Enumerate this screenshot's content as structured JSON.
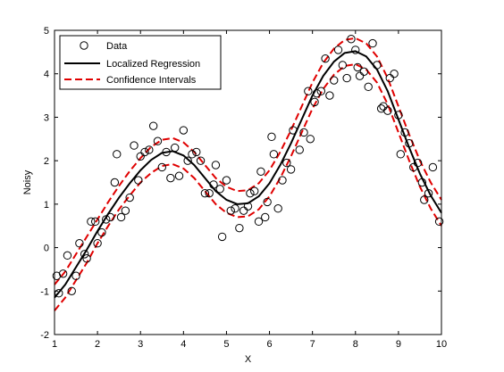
{
  "chart_data": {
    "type": "scatter",
    "title": "",
    "xlabel": "X",
    "ylabel": "Noisy",
    "xlim": [
      1,
      10
    ],
    "ylim": [
      -2,
      5
    ],
    "xticks": [
      "1",
      "2",
      "3",
      "4",
      "5",
      "6",
      "7",
      "8",
      "9",
      "10"
    ],
    "yticks": [
      "-2",
      "-1",
      "0",
      "1",
      "2",
      "3",
      "4",
      "5"
    ],
    "grid": false,
    "legend_position": "top-left",
    "legend": {
      "data": "Data",
      "fit": "Localized Regression",
      "ci": "Confidence Intervals"
    },
    "colors": {
      "data": "#000000",
      "fit": "#000000",
      "ci": "#e00000"
    },
    "series": [
      {
        "name": "Data",
        "kind": "scatter",
        "points": [
          [
            1.05,
            -0.65
          ],
          [
            1.1,
            -1.05
          ],
          [
            1.2,
            -0.6
          ],
          [
            1.3,
            -0.18
          ],
          [
            1.4,
            -1.0
          ],
          [
            1.5,
            -0.65
          ],
          [
            1.58,
            0.1
          ],
          [
            1.7,
            -0.15
          ],
          [
            1.75,
            -0.25
          ],
          [
            1.85,
            0.6
          ],
          [
            1.95,
            0.6
          ],
          [
            2.0,
            0.1
          ],
          [
            2.1,
            0.35
          ],
          [
            2.2,
            0.65
          ],
          [
            2.3,
            0.7
          ],
          [
            2.4,
            1.5
          ],
          [
            2.45,
            2.15
          ],
          [
            2.55,
            0.7
          ],
          [
            2.65,
            0.85
          ],
          [
            2.75,
            1.15
          ],
          [
            2.85,
            2.35
          ],
          [
            2.95,
            1.55
          ],
          [
            3.0,
            2.1
          ],
          [
            3.1,
            2.2
          ],
          [
            3.2,
            2.25
          ],
          [
            3.3,
            2.8
          ],
          [
            3.4,
            2.45
          ],
          [
            3.5,
            1.85
          ],
          [
            3.6,
            2.2
          ],
          [
            3.7,
            1.6
          ],
          [
            3.8,
            2.3
          ],
          [
            3.9,
            1.65
          ],
          [
            4.0,
            2.7
          ],
          [
            4.1,
            2.0
          ],
          [
            4.2,
            2.15
          ],
          [
            4.3,
            2.2
          ],
          [
            4.4,
            2.0
          ],
          [
            4.5,
            1.25
          ],
          [
            4.6,
            1.25
          ],
          [
            4.7,
            1.45
          ],
          [
            4.75,
            1.9
          ],
          [
            4.85,
            1.35
          ],
          [
            4.9,
            0.25
          ],
          [
            5.0,
            1.55
          ],
          [
            5.1,
            0.85
          ],
          [
            5.2,
            0.9
          ],
          [
            5.3,
            0.45
          ],
          [
            5.4,
            0.85
          ],
          [
            5.5,
            0.95
          ],
          [
            5.55,
            1.25
          ],
          [
            5.65,
            1.3
          ],
          [
            5.75,
            0.6
          ],
          [
            5.8,
            1.75
          ],
          [
            5.9,
            0.7
          ],
          [
            5.95,
            1.05
          ],
          [
            6.05,
            2.55
          ],
          [
            6.1,
            2.15
          ],
          [
            6.2,
            0.9
          ],
          [
            6.3,
            1.55
          ],
          [
            6.4,
            1.95
          ],
          [
            6.5,
            1.8
          ],
          [
            6.55,
            2.7
          ],
          [
            6.7,
            2.25
          ],
          [
            6.8,
            2.65
          ],
          [
            6.9,
            3.6
          ],
          [
            6.95,
            2.5
          ],
          [
            7.05,
            3.35
          ],
          [
            7.1,
            3.55
          ],
          [
            7.2,
            3.6
          ],
          [
            7.3,
            4.35
          ],
          [
            7.4,
            3.5
          ],
          [
            7.5,
            3.85
          ],
          [
            7.6,
            4.55
          ],
          [
            7.7,
            4.2
          ],
          [
            7.8,
            3.9
          ],
          [
            7.9,
            4.8
          ],
          [
            8.0,
            4.55
          ],
          [
            8.05,
            4.15
          ],
          [
            8.1,
            3.95
          ],
          [
            8.2,
            4.05
          ],
          [
            8.3,
            3.7
          ],
          [
            8.4,
            4.7
          ],
          [
            8.5,
            4.2
          ],
          [
            8.6,
            3.2
          ],
          [
            8.65,
            3.25
          ],
          [
            8.75,
            3.15
          ],
          [
            8.8,
            3.9
          ],
          [
            8.9,
            4.0
          ],
          [
            9.0,
            3.05
          ],
          [
            9.05,
            2.15
          ],
          [
            9.15,
            2.65
          ],
          [
            9.25,
            2.4
          ],
          [
            9.35,
            1.85
          ],
          [
            9.45,
            1.95
          ],
          [
            9.55,
            1.5
          ],
          [
            9.6,
            1.1
          ],
          [
            9.7,
            1.25
          ],
          [
            9.8,
            1.85
          ],
          [
            9.95,
            0.6
          ]
        ]
      },
      {
        "name": "Localized Regression",
        "kind": "line",
        "points": [
          [
            1.0,
            -1.15
          ],
          [
            1.25,
            -0.85
          ],
          [
            1.5,
            -0.45
          ],
          [
            1.75,
            -0.05
          ],
          [
            2.0,
            0.38
          ],
          [
            2.25,
            0.78
          ],
          [
            2.5,
            1.15
          ],
          [
            2.75,
            1.48
          ],
          [
            3.0,
            1.78
          ],
          [
            3.25,
            2.02
          ],
          [
            3.5,
            2.18
          ],
          [
            3.75,
            2.22
          ],
          [
            4.0,
            2.12
          ],
          [
            4.25,
            1.9
          ],
          [
            4.5,
            1.6
          ],
          [
            4.75,
            1.3
          ],
          [
            5.0,
            1.1
          ],
          [
            5.25,
            1.0
          ],
          [
            5.5,
            1.02
          ],
          [
            5.75,
            1.18
          ],
          [
            6.0,
            1.48
          ],
          [
            6.25,
            1.9
          ],
          [
            6.5,
            2.4
          ],
          [
            6.75,
            2.95
          ],
          [
            7.0,
            3.5
          ],
          [
            7.25,
            3.95
          ],
          [
            7.5,
            4.28
          ],
          [
            7.75,
            4.48
          ],
          [
            8.0,
            4.52
          ],
          [
            8.25,
            4.4
          ],
          [
            8.5,
            4.1
          ],
          [
            8.75,
            3.6
          ],
          [
            9.0,
            2.95
          ],
          [
            9.25,
            2.3
          ],
          [
            9.5,
            1.7
          ],
          [
            9.75,
            1.2
          ],
          [
            10.0,
            0.8
          ]
        ]
      },
      {
        "name": "Confidence Intervals",
        "kind": "line",
        "dashed": true,
        "points": [
          [
            1.0,
            -0.85
          ],
          [
            1.25,
            -0.55
          ],
          [
            1.5,
            -0.15
          ],
          [
            1.75,
            0.25
          ],
          [
            2.0,
            0.65
          ],
          [
            2.25,
            1.05
          ],
          [
            2.5,
            1.42
          ],
          [
            2.75,
            1.76
          ],
          [
            3.0,
            2.06
          ],
          [
            3.25,
            2.32
          ],
          [
            3.5,
            2.48
          ],
          [
            3.75,
            2.52
          ],
          [
            4.0,
            2.42
          ],
          [
            4.25,
            2.2
          ],
          [
            4.5,
            1.9
          ],
          [
            4.75,
            1.6
          ],
          [
            5.0,
            1.4
          ],
          [
            5.25,
            1.3
          ],
          [
            5.5,
            1.32
          ],
          [
            5.75,
            1.48
          ],
          [
            6.0,
            1.78
          ],
          [
            6.25,
            2.2
          ],
          [
            6.5,
            2.7
          ],
          [
            6.75,
            3.25
          ],
          [
            7.0,
            3.8
          ],
          [
            7.25,
            4.25
          ],
          [
            7.5,
            4.58
          ],
          [
            7.75,
            4.78
          ],
          [
            8.0,
            4.82
          ],
          [
            8.25,
            4.7
          ],
          [
            8.5,
            4.4
          ],
          [
            8.75,
            3.9
          ],
          [
            9.0,
            3.25
          ],
          [
            9.25,
            2.6
          ],
          [
            9.5,
            2.0
          ],
          [
            9.75,
            1.5
          ],
          [
            10.0,
            1.1
          ]
        ]
      },
      {
        "name": "Confidence Intervals",
        "kind": "line",
        "dashed": true,
        "points": [
          [
            1.0,
            -1.45
          ],
          [
            1.25,
            -1.15
          ],
          [
            1.5,
            -0.75
          ],
          [
            1.75,
            -0.35
          ],
          [
            2.0,
            0.1
          ],
          [
            2.25,
            0.5
          ],
          [
            2.5,
            0.88
          ],
          [
            2.75,
            1.2
          ],
          [
            3.0,
            1.5
          ],
          [
            3.25,
            1.72
          ],
          [
            3.5,
            1.88
          ],
          [
            3.75,
            1.92
          ],
          [
            4.0,
            1.82
          ],
          [
            4.25,
            1.6
          ],
          [
            4.5,
            1.3
          ],
          [
            4.75,
            1.0
          ],
          [
            5.0,
            0.8
          ],
          [
            5.25,
            0.7
          ],
          [
            5.5,
            0.72
          ],
          [
            5.75,
            0.88
          ],
          [
            6.0,
            1.18
          ],
          [
            6.25,
            1.6
          ],
          [
            6.5,
            2.1
          ],
          [
            6.75,
            2.65
          ],
          [
            7.0,
            3.2
          ],
          [
            7.25,
            3.65
          ],
          [
            7.5,
            3.98
          ],
          [
            7.75,
            4.18
          ],
          [
            8.0,
            4.22
          ],
          [
            8.25,
            4.1
          ],
          [
            8.5,
            3.8
          ],
          [
            8.75,
            3.3
          ],
          [
            9.0,
            2.65
          ],
          [
            9.25,
            2.0
          ],
          [
            9.5,
            1.4
          ],
          [
            9.75,
            0.9
          ],
          [
            10.0,
            0.5
          ]
        ]
      }
    ]
  }
}
